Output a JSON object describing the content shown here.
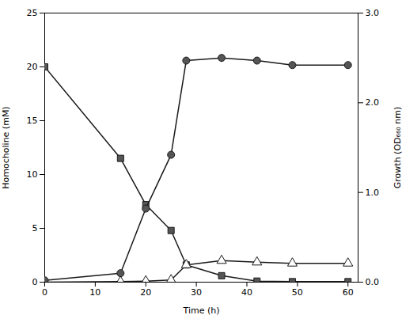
{
  "chart_data": {
    "type": "line",
    "xlabel": "Time (h)",
    "ylabel": "Homocholine (mM)",
    "y2label": "Growth (OD₆₆₀ nm)",
    "xlim": [
      0,
      62
    ],
    "ylim": [
      0,
      25
    ],
    "y2lim": [
      0,
      3
    ],
    "xticks": [
      0,
      10,
      20,
      30,
      40,
      50,
      60
    ],
    "yticks": [
      0,
      5,
      10,
      15,
      20,
      25
    ],
    "y2ticks": [
      0,
      1,
      2,
      3
    ],
    "grid": false,
    "x": [
      0,
      15,
      20,
      25,
      28,
      35,
      42,
      49,
      60
    ],
    "series": [
      {
        "color": "#1a1a1a",
        "marker": "square",
        "values": [
          20,
          11.5,
          7.2,
          4.8,
          1.6,
          0.6,
          0.1,
          0.05,
          0.05
        ]
      },
      {
        "color": "#1a1a1a",
        "marker": "triangle-open",
        "values": [
          0.0,
          0.05,
          0.1,
          0.2,
          1.6,
          2.0,
          1.85,
          1.75,
          1.75
        ]
      },
      {
        "color": "#1a1a1a",
        "marker": "circle",
        "axis": "y2",
        "values": [
          0.02,
          0.1,
          0.82,
          1.42,
          2.47,
          2.5,
          2.47,
          2.42,
          2.42
        ]
      }
    ]
  }
}
